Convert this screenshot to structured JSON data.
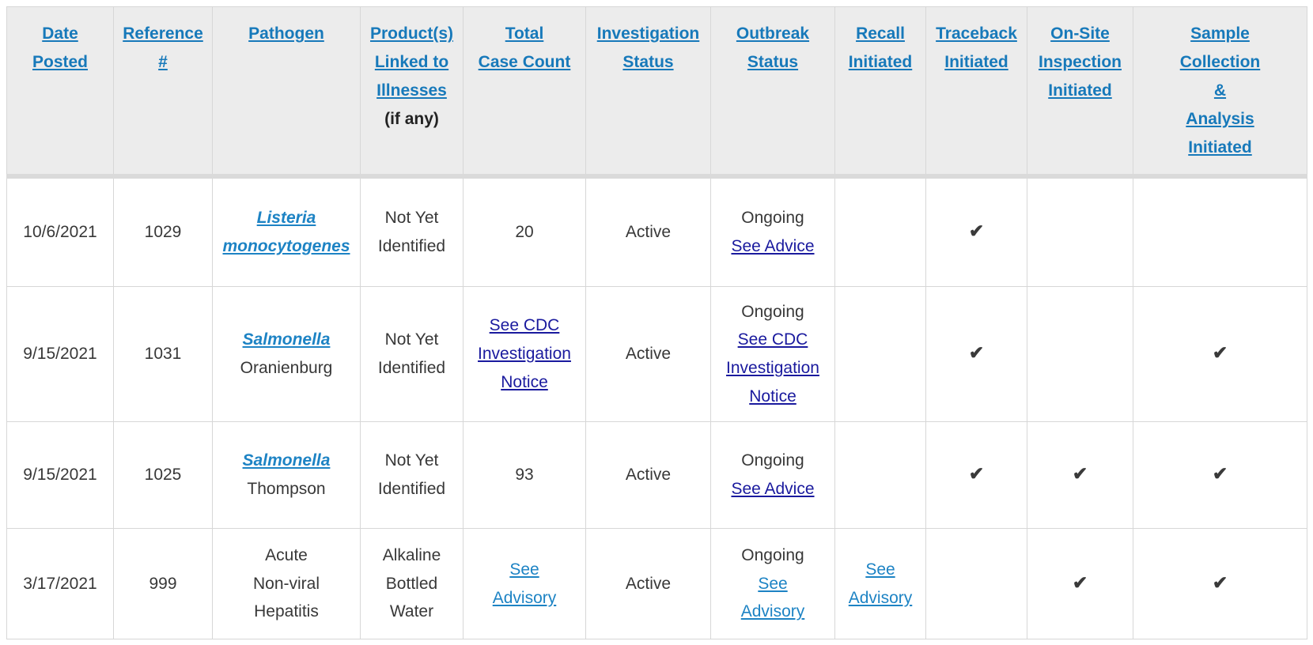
{
  "colors": {
    "header_blue": "#1779ba",
    "link_blue": "#1d83c4",
    "link_navy": "#1a1a9e",
    "body_text": "#383838",
    "header_bg": "#ececec",
    "border": "#d7d7d7",
    "checkmark": "#3a3a3a"
  },
  "icons": {
    "check": "✔"
  },
  "table": {
    "columns": [
      {
        "key": "date_posted",
        "label": "Date Posted",
        "lines": [
          "Date",
          "Posted"
        ]
      },
      {
        "key": "reference",
        "label": "Reference #",
        "lines": [
          "Reference",
          "#"
        ]
      },
      {
        "key": "pathogen",
        "label": "Pathogen",
        "lines": [
          "Pathogen"
        ]
      },
      {
        "key": "products",
        "label": "Product(s) Linked to Illnesses",
        "lines": [
          "Product(s)",
          "Linked to",
          "Illnesses"
        ],
        "suffix": "(if any)"
      },
      {
        "key": "case_count",
        "label": "Total Case Count",
        "lines": [
          "Total",
          "Case Count"
        ]
      },
      {
        "key": "investigation_status",
        "label": "Investigation Status",
        "lines": [
          "Investigation",
          "Status"
        ]
      },
      {
        "key": "outbreak_status",
        "label": "Outbreak Status",
        "lines": [
          "Outbreak",
          "Status"
        ]
      },
      {
        "key": "recall",
        "label": "Recall Initiated",
        "lines": [
          "Recall",
          "Initiated"
        ]
      },
      {
        "key": "traceback",
        "label": "Traceback Initiated",
        "lines": [
          "Traceback",
          "Initiated"
        ]
      },
      {
        "key": "onsite_inspection",
        "label": "On-Site Inspection Initiated",
        "lines": [
          "On-Site",
          "Inspection",
          "Initiated"
        ]
      },
      {
        "key": "sample_collection",
        "label": "Sample Collection & Analysis Initiated",
        "lines": [
          "Sample",
          "Collection",
          "&",
          "Analysis",
          "Initiated"
        ]
      }
    ],
    "rows": [
      {
        "cells": [
          [
            {
              "type": "text",
              "text": "10/6/2021"
            }
          ],
          [
            {
              "type": "text",
              "text": "1029"
            }
          ],
          [
            {
              "type": "link",
              "style": "pathogen",
              "name": "listeria-monocytogenes-link",
              "text": "Listeria monocytogenes",
              "lines": [
                "Listeria",
                "monocytogenes"
              ]
            }
          ],
          [
            {
              "type": "text",
              "text": "Not Yet Identified",
              "lines": [
                "Not Yet",
                "Identified"
              ]
            }
          ],
          [
            {
              "type": "text",
              "text": "20"
            }
          ],
          [
            {
              "type": "text",
              "text": "Active"
            }
          ],
          [
            {
              "type": "text",
              "text": "Ongoing"
            },
            {
              "type": "link",
              "style": "navy",
              "name": "see-advice-link",
              "text": "See Advice"
            }
          ],
          [],
          [
            {
              "type": "check"
            }
          ],
          [],
          []
        ]
      },
      {
        "cells": [
          [
            {
              "type": "text",
              "text": "9/15/2021"
            }
          ],
          [
            {
              "type": "text",
              "text": "1031"
            }
          ],
          [
            {
              "type": "link",
              "style": "pathogen",
              "name": "salmonella-link",
              "text": "Salmonella"
            },
            {
              "type": "text",
              "text": "Oranienburg"
            }
          ],
          [
            {
              "type": "text",
              "text": "Not Yet Identified",
              "lines": [
                "Not Yet",
                "Identified"
              ]
            }
          ],
          [
            {
              "type": "link",
              "style": "navy",
              "name": "see-cdc-investigation-notice-link",
              "text": "See CDC Investigation Notice",
              "lines": [
                "See CDC",
                "Investigation",
                "Notice"
              ]
            }
          ],
          [
            {
              "type": "text",
              "text": "Active"
            }
          ],
          [
            {
              "type": "text",
              "text": "Ongoing"
            },
            {
              "type": "link",
              "style": "navy",
              "name": "see-cdc-investigation-notice-link",
              "text": "See CDC Investigation Notice",
              "lines": [
                "See CDC",
                "Investigation",
                "Notice"
              ]
            }
          ],
          [],
          [
            {
              "type": "check"
            }
          ],
          [],
          [
            {
              "type": "check"
            }
          ]
        ]
      },
      {
        "cells": [
          [
            {
              "type": "text",
              "text": "9/15/2021"
            }
          ],
          [
            {
              "type": "text",
              "text": "1025"
            }
          ],
          [
            {
              "type": "link",
              "style": "pathogen",
              "name": "salmonella-link",
              "text": "Salmonella"
            },
            {
              "type": "text",
              "text": "Thompson"
            }
          ],
          [
            {
              "type": "text",
              "text": "Not Yet Identified",
              "lines": [
                "Not Yet",
                "Identified"
              ]
            }
          ],
          [
            {
              "type": "text",
              "text": "93"
            }
          ],
          [
            {
              "type": "text",
              "text": "Active"
            }
          ],
          [
            {
              "type": "text",
              "text": "Ongoing"
            },
            {
              "type": "link",
              "style": "navy",
              "name": "see-advice-link",
              "text": "See Advice"
            }
          ],
          [],
          [
            {
              "type": "check"
            }
          ],
          [
            {
              "type": "check"
            }
          ],
          [
            {
              "type": "check"
            }
          ]
        ]
      },
      {
        "cells": [
          [
            {
              "type": "text",
              "text": "3/17/2021"
            }
          ],
          [
            {
              "type": "text",
              "text": "999"
            }
          ],
          [
            {
              "type": "text",
              "text": "Acute Non-viral Hepatitis",
              "lines": [
                "Acute",
                "Non-viral",
                "Hepatitis"
              ]
            }
          ],
          [
            {
              "type": "text",
              "text": "Alkaline Bottled Water",
              "lines": [
                "Alkaline",
                "Bottled",
                "Water"
              ]
            }
          ],
          [
            {
              "type": "link",
              "style": "blue",
              "name": "see-advisory-link",
              "text": "See Advisory",
              "lines": [
                "See",
                "Advisory"
              ]
            }
          ],
          [
            {
              "type": "text",
              "text": "Active"
            }
          ],
          [
            {
              "type": "text",
              "text": "Ongoing"
            },
            {
              "type": "link",
              "style": "blue",
              "name": "see-advisory-link",
              "text": "See Advisory",
              "lines": [
                "See",
                "Advisory"
              ]
            }
          ],
          [
            {
              "type": "link",
              "style": "blue",
              "name": "see-advisory-link",
              "text": "See Advisory",
              "lines": [
                "See",
                "Advisory"
              ]
            }
          ],
          [],
          [
            {
              "type": "check"
            }
          ],
          [
            {
              "type": "check"
            }
          ]
        ]
      }
    ]
  }
}
